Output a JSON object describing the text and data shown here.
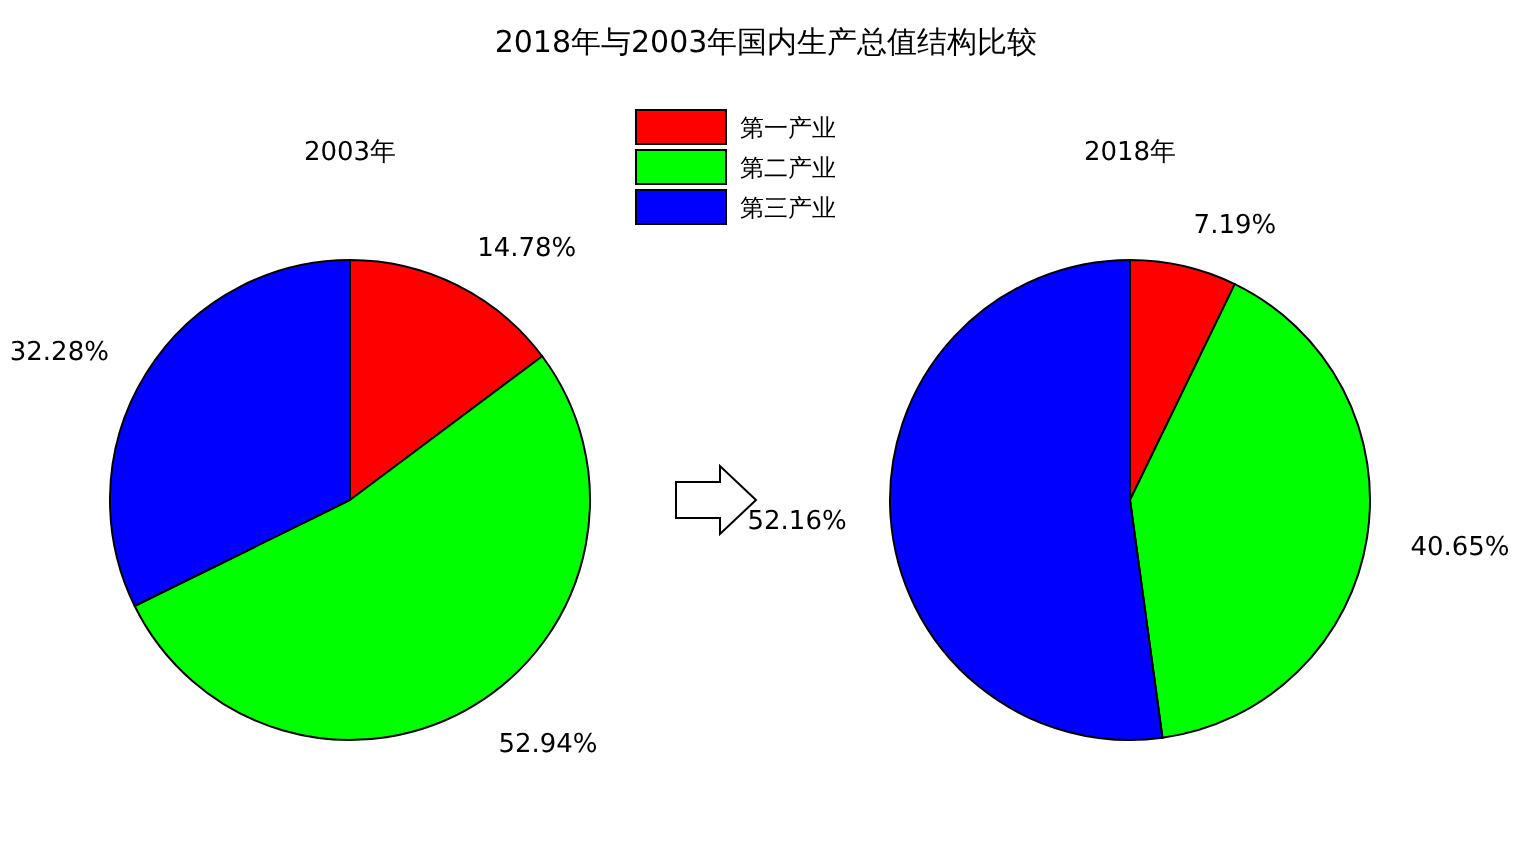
{
  "chart_data": [
    {
      "type": "pie",
      "title": "2018年与2003年国内生产总值结构比较",
      "subtitle": "2003年",
      "categories": [
        "第一产业",
        "第二产业",
        "第三产业"
      ],
      "values": [
        14.78,
        52.94,
        32.28
      ],
      "value_labels": [
        "14.78%",
        "52.94%",
        "32.28%"
      ],
      "colors": [
        "#ff0000",
        "#00ff00",
        "#0000ff"
      ],
      "legend": "top right"
    },
    {
      "type": "pie",
      "title": "2018年",
      "values": [
        7.19,
        40.65,
        52.16
      ],
      "value_labels": [
        "7.19%",
        "40.65%",
        "52.16%"
      ],
      "colors": [
        "#ff0000",
        "#00ff00",
        "#0000ff"
      ]
    }
  ]
}
